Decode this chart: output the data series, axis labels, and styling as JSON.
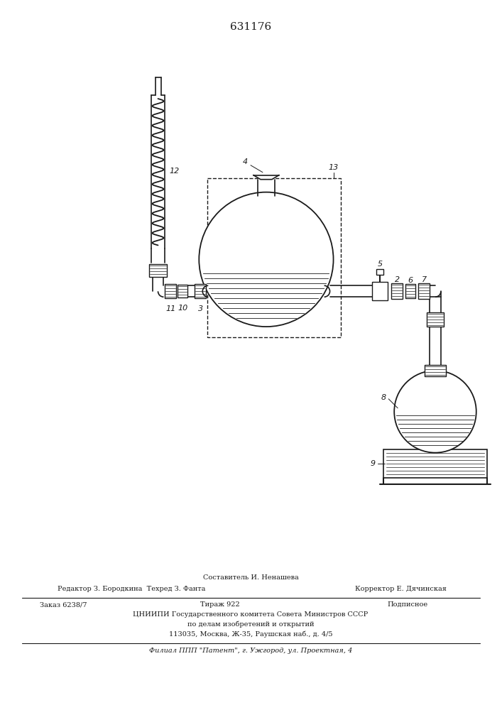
{
  "title": "631176",
  "bg_color": "#ffffff",
  "line_color": "#1a1a1a",
  "footer_line1": "Составитель И. Ненашева",
  "footer_line2": "Редактор З. Бородкина  Техред З. Фанта",
  "footer_line3_right": "Корректор Е. Дячинская",
  "footer_line4a": "Заказ 6238/7",
  "footer_line4b": "Тираж 922",
  "footer_line4c": "Подписное",
  "footer_line5": "ЦНИИПИ Государственного комитета Совета Министров СССР",
  "footer_line6": "по делам изобретений и открытий",
  "footer_line7": "113035, Москва, Ж-35, Раушская наб., д. 4/5",
  "footer_line8": "Филиал ППП \"Патент\", г. Ужгород, ул. Проектная, 4"
}
